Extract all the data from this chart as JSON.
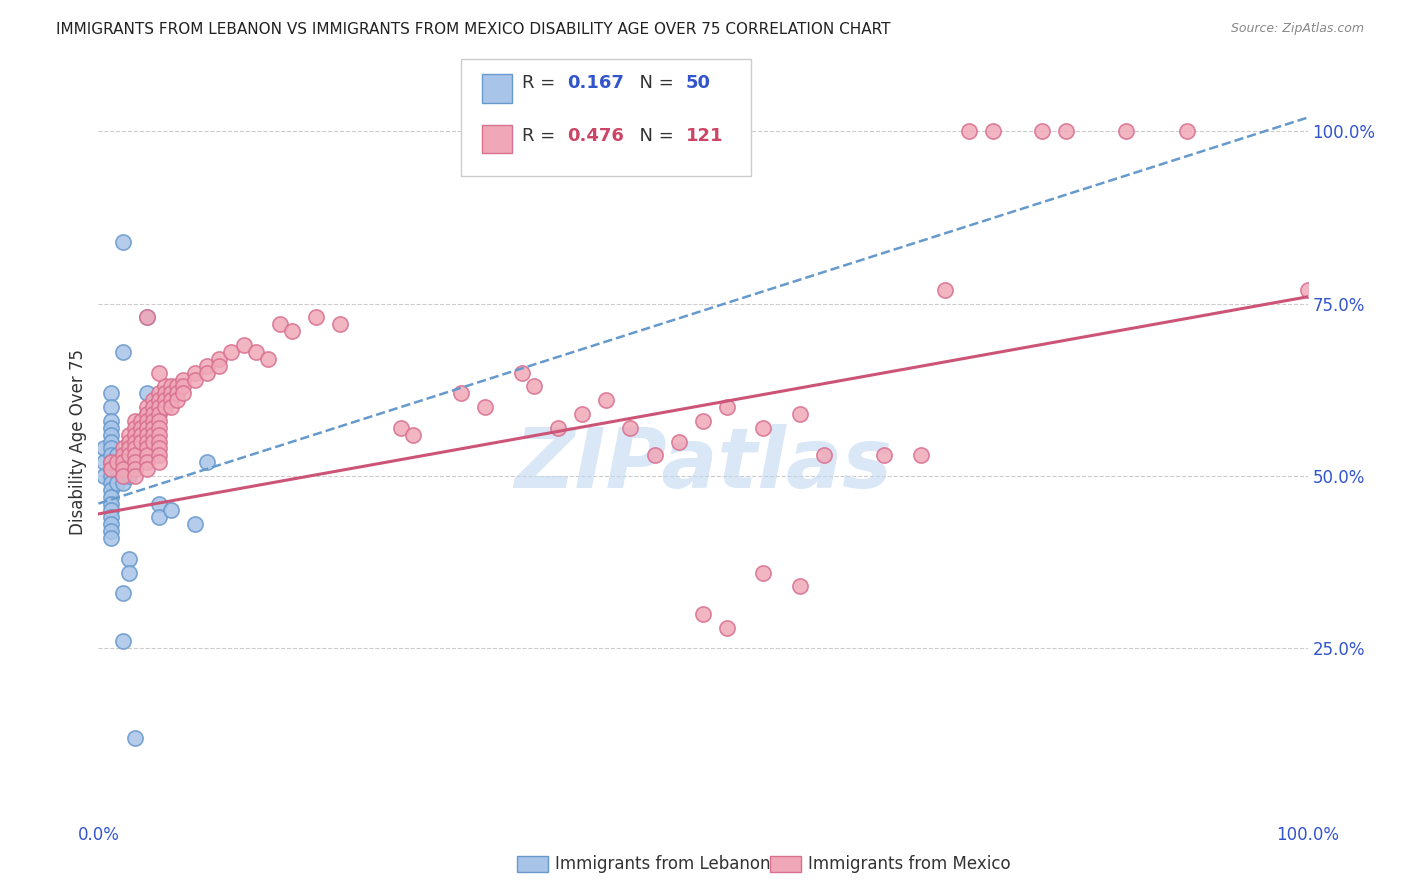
{
  "title": "IMMIGRANTS FROM LEBANON VS IMMIGRANTS FROM MEXICO DISABILITY AGE OVER 75 CORRELATION CHART",
  "source": "Source: ZipAtlas.com",
  "ylabel": "Disability Age Over 75",
  "legend_r_n": [
    {
      "R": "0.167",
      "N": "50",
      "series": "Lebanon"
    },
    {
      "R": "0.476",
      "N": "121",
      "series": "Mexico"
    }
  ],
  "lebanon_scatter": [
    [
      0.005,
      0.54
    ],
    [
      0.005,
      0.52
    ],
    [
      0.005,
      0.5
    ],
    [
      0.01,
      0.62
    ],
    [
      0.01,
      0.6
    ],
    [
      0.01,
      0.58
    ],
    [
      0.01,
      0.57
    ],
    [
      0.01,
      0.56
    ],
    [
      0.01,
      0.55
    ],
    [
      0.01,
      0.54
    ],
    [
      0.01,
      0.53
    ],
    [
      0.01,
      0.52
    ],
    [
      0.01,
      0.51
    ],
    [
      0.01,
      0.5
    ],
    [
      0.01,
      0.49
    ],
    [
      0.01,
      0.48
    ],
    [
      0.01,
      0.47
    ],
    [
      0.01,
      0.46
    ],
    [
      0.01,
      0.45
    ],
    [
      0.01,
      0.44
    ],
    [
      0.01,
      0.43
    ],
    [
      0.01,
      0.42
    ],
    [
      0.01,
      0.41
    ],
    [
      0.015,
      0.53
    ],
    [
      0.015,
      0.51
    ],
    [
      0.015,
      0.49
    ],
    [
      0.02,
      0.52
    ],
    [
      0.02,
      0.51
    ],
    [
      0.02,
      0.5
    ],
    [
      0.02,
      0.49
    ],
    [
      0.025,
      0.51
    ],
    [
      0.025,
      0.5
    ],
    [
      0.03,
      0.54
    ],
    [
      0.04,
      0.59
    ],
    [
      0.04,
      0.57
    ],
    [
      0.05,
      0.46
    ],
    [
      0.05,
      0.44
    ],
    [
      0.06,
      0.45
    ],
    [
      0.08,
      0.43
    ],
    [
      0.09,
      0.52
    ],
    [
      0.02,
      0.84
    ],
    [
      0.04,
      0.73
    ],
    [
      0.02,
      0.68
    ],
    [
      0.04,
      0.62
    ],
    [
      0.02,
      0.33
    ],
    [
      0.025,
      0.38
    ],
    [
      0.025,
      0.36
    ],
    [
      0.02,
      0.26
    ],
    [
      0.03,
      0.12
    ]
  ],
  "mexico_scatter": [
    [
      0.01,
      0.52
    ],
    [
      0.01,
      0.51
    ],
    [
      0.015,
      0.52
    ],
    [
      0.02,
      0.54
    ],
    [
      0.02,
      0.53
    ],
    [
      0.02,
      0.52
    ],
    [
      0.02,
      0.51
    ],
    [
      0.02,
      0.5
    ],
    [
      0.025,
      0.56
    ],
    [
      0.025,
      0.55
    ],
    [
      0.025,
      0.54
    ],
    [
      0.025,
      0.53
    ],
    [
      0.03,
      0.58
    ],
    [
      0.03,
      0.57
    ],
    [
      0.03,
      0.56
    ],
    [
      0.03,
      0.55
    ],
    [
      0.03,
      0.54
    ],
    [
      0.03,
      0.53
    ],
    [
      0.03,
      0.52
    ],
    [
      0.03,
      0.51
    ],
    [
      0.03,
      0.5
    ],
    [
      0.035,
      0.58
    ],
    [
      0.035,
      0.57
    ],
    [
      0.035,
      0.56
    ],
    [
      0.035,
      0.55
    ],
    [
      0.04,
      0.6
    ],
    [
      0.04,
      0.59
    ],
    [
      0.04,
      0.58
    ],
    [
      0.04,
      0.57
    ],
    [
      0.04,
      0.56
    ],
    [
      0.04,
      0.55
    ],
    [
      0.04,
      0.54
    ],
    [
      0.04,
      0.53
    ],
    [
      0.04,
      0.52
    ],
    [
      0.04,
      0.51
    ],
    [
      0.045,
      0.61
    ],
    [
      0.045,
      0.6
    ],
    [
      0.045,
      0.59
    ],
    [
      0.045,
      0.58
    ],
    [
      0.045,
      0.57
    ],
    [
      0.045,
      0.56
    ],
    [
      0.045,
      0.55
    ],
    [
      0.05,
      0.62
    ],
    [
      0.05,
      0.61
    ],
    [
      0.05,
      0.6
    ],
    [
      0.05,
      0.59
    ],
    [
      0.05,
      0.58
    ],
    [
      0.05,
      0.57
    ],
    [
      0.05,
      0.56
    ],
    [
      0.05,
      0.55
    ],
    [
      0.05,
      0.54
    ],
    [
      0.05,
      0.53
    ],
    [
      0.05,
      0.52
    ],
    [
      0.055,
      0.63
    ],
    [
      0.055,
      0.62
    ],
    [
      0.055,
      0.61
    ],
    [
      0.055,
      0.6
    ],
    [
      0.06,
      0.63
    ],
    [
      0.06,
      0.62
    ],
    [
      0.06,
      0.61
    ],
    [
      0.06,
      0.6
    ],
    [
      0.065,
      0.63
    ],
    [
      0.065,
      0.62
    ],
    [
      0.065,
      0.61
    ],
    [
      0.07,
      0.64
    ],
    [
      0.07,
      0.63
    ],
    [
      0.07,
      0.62
    ],
    [
      0.08,
      0.65
    ],
    [
      0.08,
      0.64
    ],
    [
      0.09,
      0.66
    ],
    [
      0.09,
      0.65
    ],
    [
      0.1,
      0.67
    ],
    [
      0.1,
      0.66
    ],
    [
      0.11,
      0.68
    ],
    [
      0.12,
      0.69
    ],
    [
      0.04,
      0.73
    ],
    [
      0.05,
      0.65
    ],
    [
      0.13,
      0.68
    ],
    [
      0.14,
      0.67
    ],
    [
      0.15,
      0.72
    ],
    [
      0.16,
      0.71
    ],
    [
      0.18,
      0.73
    ],
    [
      0.2,
      0.72
    ],
    [
      0.25,
      0.57
    ],
    [
      0.26,
      0.56
    ],
    [
      0.3,
      0.62
    ],
    [
      0.32,
      0.6
    ],
    [
      0.35,
      0.65
    ],
    [
      0.36,
      0.63
    ],
    [
      0.38,
      0.57
    ],
    [
      0.4,
      0.59
    ],
    [
      0.42,
      0.61
    ],
    [
      0.44,
      0.57
    ],
    [
      0.46,
      0.53
    ],
    [
      0.48,
      0.55
    ],
    [
      0.5,
      0.58
    ],
    [
      0.52,
      0.6
    ],
    [
      0.55,
      0.57
    ],
    [
      0.58,
      0.59
    ],
    [
      0.6,
      0.53
    ],
    [
      0.5,
      0.3
    ],
    [
      0.52,
      0.28
    ],
    [
      0.55,
      0.36
    ],
    [
      0.58,
      0.34
    ],
    [
      0.65,
      0.53
    ],
    [
      0.7,
      0.77
    ],
    [
      0.68,
      0.53
    ],
    [
      0.72,
      1.0
    ],
    [
      0.74,
      1.0
    ],
    [
      0.78,
      1.0
    ],
    [
      0.8,
      1.0
    ],
    [
      0.85,
      1.0
    ],
    [
      0.9,
      1.0
    ],
    [
      1.0,
      0.77
    ]
  ],
  "lebanon_line_x": [
    0.0,
    1.0
  ],
  "lebanon_line_y": [
    0.46,
    1.02
  ],
  "mexico_line_x": [
    0.0,
    1.0
  ],
  "mexico_line_y": [
    0.445,
    0.76
  ],
  "scatter_lebanon_facecolor": "#a8c4e8",
  "scatter_lebanon_edgecolor": "#6899cc",
  "scatter_mexico_facecolor": "#f0a8b8",
  "scatter_mexico_edgecolor": "#d87090",
  "lebanon_line_color": "#6699cc",
  "mexico_line_color": "#cc5577",
  "r_n_text_color": "#3355cc",
  "r_color_lebanon": "#3355cc",
  "r_color_mexico": "#cc4466",
  "watermark_text": "ZIPatlas",
  "watermark_color": "#c0d8f0",
  "xlim": [
    0.0,
    1.0
  ],
  "ylim": [
    0.0,
    1.1
  ],
  "yticks": [
    0.25,
    0.5,
    0.75,
    1.0
  ],
  "ytick_labels": [
    "25.0%",
    "50.0%",
    "75.0%",
    "100.0%"
  ],
  "xtick_left": "0.0%",
  "xtick_right": "100.0%",
  "tick_color": "#3355cc",
  "grid_color": "#cccccc",
  "background": "#ffffff",
  "title_fontsize": 11,
  "legend_fontsize": 13,
  "tick_fontsize": 12,
  "bottom_legend": [
    {
      "label": "Immigrants from Lebanon",
      "facecolor": "#a8c4e8",
      "edgecolor": "#6899cc"
    },
    {
      "label": "Immigrants from Mexico",
      "facecolor": "#f0a8b8",
      "edgecolor": "#d87090"
    }
  ]
}
